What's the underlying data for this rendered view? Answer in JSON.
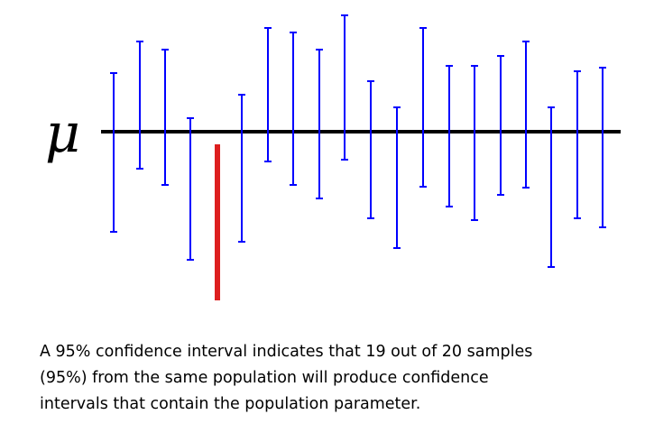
{
  "diagram": {
    "parameter_symbol": "μ",
    "colors": {
      "axis": "#000000",
      "contains_interval": "#0000ff",
      "misses_interval": "#dd1f1f"
    },
    "intervals": [
      {
        "index": 1,
        "contains_parameter": true
      },
      {
        "index": 2,
        "contains_parameter": true
      },
      {
        "index": 3,
        "contains_parameter": true
      },
      {
        "index": 4,
        "contains_parameter": true
      },
      {
        "index": 5,
        "contains_parameter": false
      },
      {
        "index": 6,
        "contains_parameter": true
      },
      {
        "index": 7,
        "contains_parameter": true
      },
      {
        "index": 8,
        "contains_parameter": true
      },
      {
        "index": 9,
        "contains_parameter": true
      },
      {
        "index": 10,
        "contains_parameter": true
      },
      {
        "index": 11,
        "contains_parameter": true
      },
      {
        "index": 12,
        "contains_parameter": true
      },
      {
        "index": 13,
        "contains_parameter": true
      },
      {
        "index": 14,
        "contains_parameter": true
      },
      {
        "index": 15,
        "contains_parameter": true
      },
      {
        "index": 16,
        "contains_parameter": true
      },
      {
        "index": 17,
        "contains_parameter": true
      },
      {
        "index": 18,
        "contains_parameter": true
      },
      {
        "index": 19,
        "contains_parameter": true
      },
      {
        "index": 20,
        "contains_parameter": true
      }
    ]
  },
  "caption": {
    "line1": "A 95% confidence interval indicates that 19 out of 20 samples",
    "line2": "(95%) from the same population will produce confidence",
    "line3": "intervals that contain the population parameter."
  }
}
